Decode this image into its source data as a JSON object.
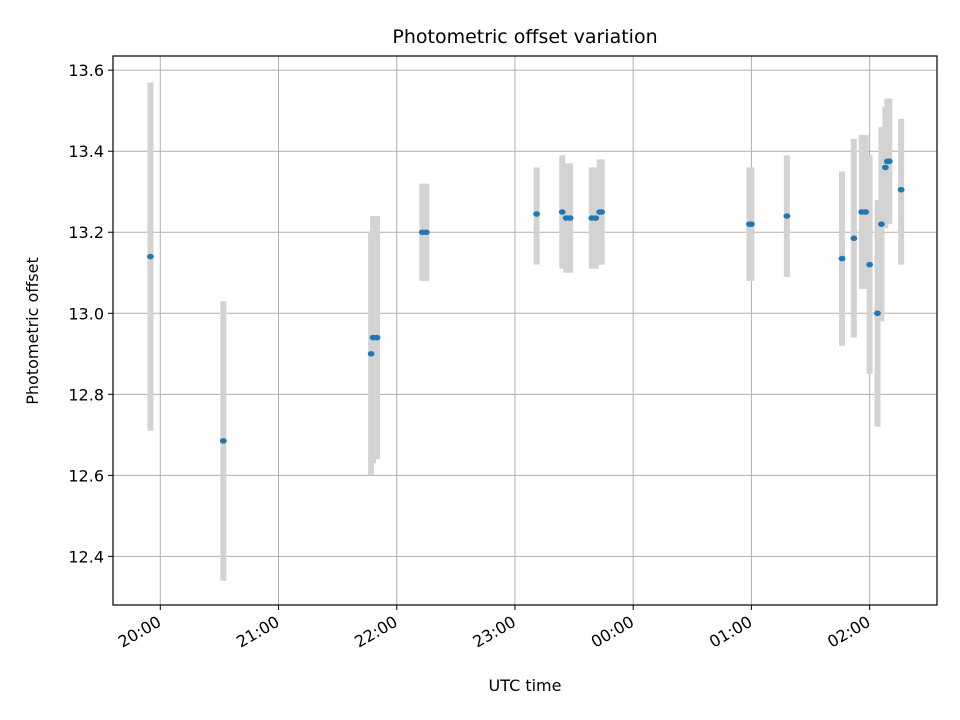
{
  "chart_data": {
    "type": "scatter",
    "title": "Photometric offset variation",
    "xlabel": "UTC time",
    "ylabel": "Photometric offset",
    "x_tick_labels": [
      "20:00",
      "21:00",
      "22:00",
      "23:00",
      "00:00",
      "01:00",
      "02:00"
    ],
    "y_tick_labels": [
      "12.4",
      "12.6",
      "12.8",
      "13.0",
      "13.2",
      "13.4",
      "13.6"
    ],
    "y_ticks": [
      12.4,
      12.6,
      12.8,
      13.0,
      13.2,
      13.4,
      13.6
    ],
    "ylim": [
      12.28,
      13.635
    ],
    "xlim_hours": [
      19.6,
      26.57
    ],
    "grid": true,
    "legend": "none",
    "colors": {
      "marker": "#1f77b4",
      "error_bar": "#d3d3d3",
      "grid": "#b0b0b0"
    },
    "points": [
      {
        "t": "19:55",
        "y": 13.14,
        "lo": 12.71,
        "hi": 13.57
      },
      {
        "t": "20:32",
        "y": 12.685,
        "lo": 12.34,
        "hi": 13.03
      },
      {
        "t": "21:47",
        "y": 12.9,
        "lo": 12.6,
        "hi": 13.2
      },
      {
        "t": "21:48",
        "y": 12.94,
        "lo": 12.63,
        "hi": 13.24
      },
      {
        "t": "21:50",
        "y": 12.94,
        "lo": 12.64,
        "hi": 13.24
      },
      {
        "t": "22:13",
        "y": 13.2,
        "lo": 13.08,
        "hi": 13.32
      },
      {
        "t": "22:15",
        "y": 13.2,
        "lo": 13.08,
        "hi": 13.32
      },
      {
        "t": "23:11",
        "y": 13.245,
        "lo": 13.12,
        "hi": 13.36
      },
      {
        "t": "23:24",
        "y": 13.25,
        "lo": 13.11,
        "hi": 13.39
      },
      {
        "t": "23:26",
        "y": 13.235,
        "lo": 13.1,
        "hi": 13.37
      },
      {
        "t": "23:28",
        "y": 13.235,
        "lo": 13.1,
        "hi": 13.37
      },
      {
        "t": "23:39",
        "y": 13.235,
        "lo": 13.11,
        "hi": 13.36
      },
      {
        "t": "23:41",
        "y": 13.235,
        "lo": 13.11,
        "hi": 13.36
      },
      {
        "t": "23:43",
        "y": 13.25,
        "lo": 13.12,
        "hi": 13.38
      },
      {
        "t": "23:44",
        "y": 13.25,
        "lo": 13.12,
        "hi": 13.38
      },
      {
        "t": "00:59",
        "y": 13.22,
        "lo": 13.08,
        "hi": 13.36
      },
      {
        "t": "01:00",
        "y": 13.22,
        "lo": 13.08,
        "hi": 13.36
      },
      {
        "t": "01:18",
        "y": 13.24,
        "lo": 13.09,
        "hi": 13.39
      },
      {
        "t": "01:46",
        "y": 13.135,
        "lo": 12.92,
        "hi": 13.35
      },
      {
        "t": "01:52",
        "y": 13.185,
        "lo": 12.94,
        "hi": 13.43
      },
      {
        "t": "01:56",
        "y": 13.25,
        "lo": 13.06,
        "hi": 13.44
      },
      {
        "t": "01:58",
        "y": 13.25,
        "lo": 13.06,
        "hi": 13.44
      },
      {
        "t": "02:00",
        "y": 13.12,
        "lo": 12.85,
        "hi": 13.39
      },
      {
        "t": "02:04",
        "y": 13.0,
        "lo": 12.72,
        "hi": 13.28
      },
      {
        "t": "02:06",
        "y": 13.22,
        "lo": 12.98,
        "hi": 13.46
      },
      {
        "t": "02:08",
        "y": 13.36,
        "lo": 13.21,
        "hi": 13.51
      },
      {
        "t": "02:09",
        "y": 13.375,
        "lo": 13.22,
        "hi": 13.53
      },
      {
        "t": "02:10",
        "y": 13.375,
        "lo": 13.22,
        "hi": 13.53
      },
      {
        "t": "02:16",
        "y": 13.305,
        "lo": 13.12,
        "hi": 13.48
      }
    ]
  }
}
